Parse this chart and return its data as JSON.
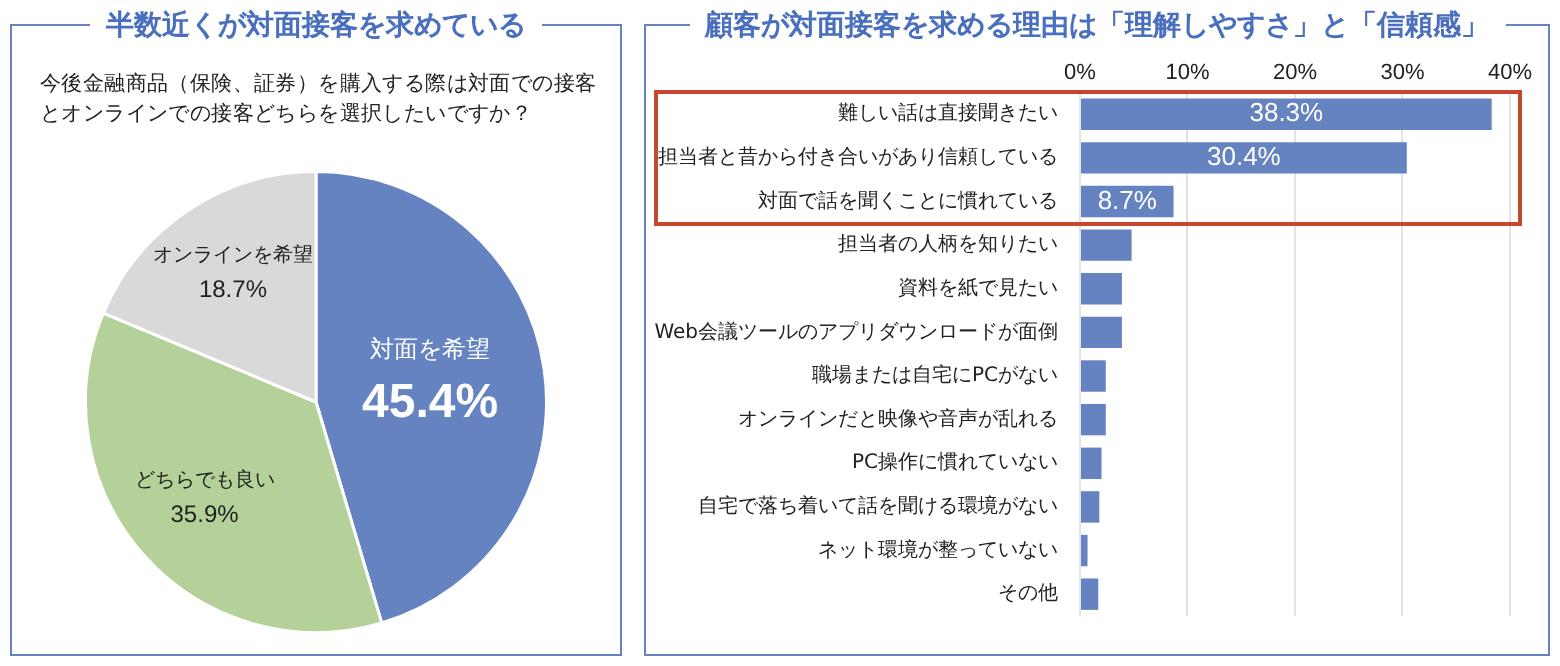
{
  "chart_data": [
    {
      "type": "pie",
      "title": "半数近くが対面接客を求めている",
      "subtitle": "今後金融商品（保険、証券）を購入する際は対面での接客とオンラインでの接客どちらを選択したいですか？",
      "categories": [
        "対面を希望",
        "どちらでも良い",
        "オンラインを希望"
      ],
      "values": [
        45.4,
        35.9,
        18.7
      ],
      "colors": [
        "#6583c1",
        "#b5d19a",
        "#d9d9d9"
      ],
      "value_labels": [
        "45.4%",
        "35.9%",
        "18.7%"
      ],
      "legend": false
    },
    {
      "type": "bar",
      "orientation": "horizontal",
      "title": "顧客が対面接客を求める理由は「理解しやすさ」と「信頼感」",
      "categories": [
        "難しい話は直接聞きたい",
        "担当者と昔から付き合いがあり信頼している",
        "対面で話を聞くことに慣れている",
        "担当者の人柄を知りたい",
        "資料を紙で見たい",
        "Web会議ツールのアプリダウンロードが面倒",
        "職場または自宅にPCがない",
        "オンラインだと映像や音声が乱れる",
        "PC操作に慣れていない",
        "自宅で落ち着いて話を聞ける環境がない",
        "ネット環境が整っていない",
        "その他"
      ],
      "values": [
        38.3,
        30.4,
        8.7,
        4.8,
        3.9,
        3.9,
        2.4,
        2.4,
        2.0,
        1.8,
        0.7,
        1.7
      ],
      "value_labels": [
        "38.3%",
        "30.4%",
        "8.7%",
        null,
        null,
        null,
        null,
        null,
        null,
        null,
        null,
        null
      ],
      "color": "#6583c1",
      "xlim": [
        0,
        40
      ],
      "xticks": [
        {
          "value": 0,
          "label": "0%"
        },
        {
          "value": 10,
          "label": "10%"
        },
        {
          "value": 20,
          "label": "20%"
        },
        {
          "value": 30,
          "label": "30%"
        },
        {
          "value": 40,
          "label": "40%"
        }
      ],
      "grid": "x",
      "legend": false
    }
  ]
}
